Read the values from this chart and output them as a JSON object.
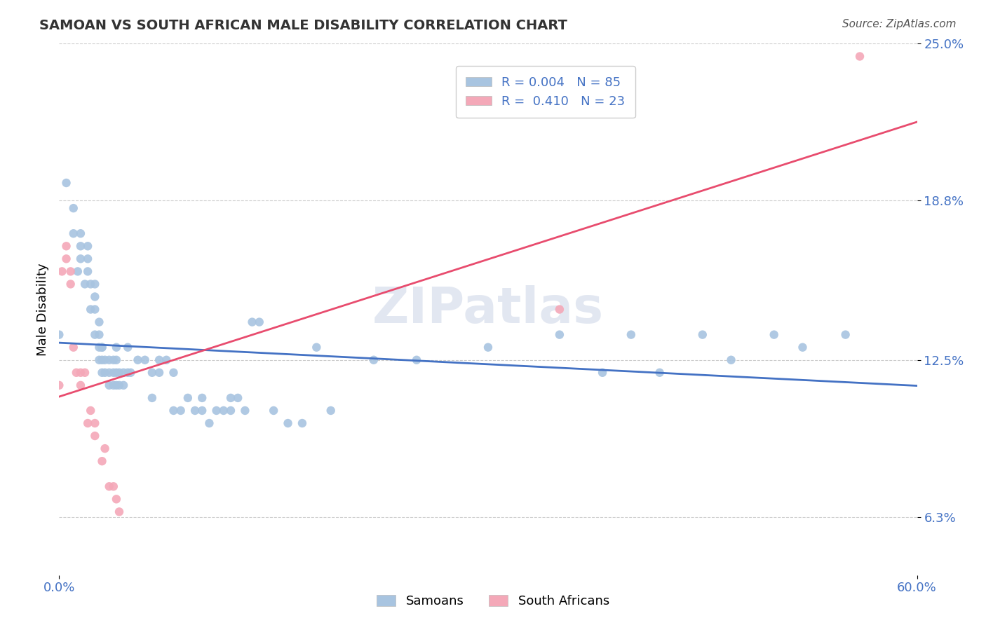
{
  "title": "SAMOAN VS SOUTH AFRICAN MALE DISABILITY CORRELATION CHART",
  "source_text": "Source: ZipAtlas.com",
  "xlabel_bottom": "",
  "ylabel": "Male Disability",
  "x_min": 0.0,
  "x_max": 0.6,
  "y_min": 0.0,
  "y_max": 0.25,
  "y_ticks": [
    0.063,
    0.125,
    0.188,
    0.25
  ],
  "y_tick_labels": [
    "6.3%",
    "12.5%",
    "18.8%",
    "25.0%"
  ],
  "x_tick_labels": [
    "0.0%",
    "60.0%"
  ],
  "legend_bottom": [
    "Samoans",
    "South Africans"
  ],
  "r_samoan": 0.004,
  "n_samoan": 85,
  "r_sa": 0.41,
  "n_sa": 23,
  "samoan_color": "#a8c4e0",
  "sa_color": "#f4a8b8",
  "trend_samoan_color": "#4472c4",
  "trend_sa_color": "#e84c6e",
  "background_color": "#ffffff",
  "grid_color": "#cccccc",
  "legend_text_color": "#4472c4",
  "watermark_color": "#d0d8e8",
  "samoan_x": [
    0.0,
    0.005,
    0.01,
    0.01,
    0.013,
    0.015,
    0.015,
    0.015,
    0.018,
    0.02,
    0.02,
    0.02,
    0.022,
    0.022,
    0.025,
    0.025,
    0.025,
    0.025,
    0.028,
    0.028,
    0.028,
    0.028,
    0.03,
    0.03,
    0.03,
    0.03,
    0.032,
    0.032,
    0.035,
    0.035,
    0.035,
    0.038,
    0.038,
    0.038,
    0.04,
    0.04,
    0.04,
    0.04,
    0.042,
    0.042,
    0.045,
    0.045,
    0.048,
    0.048,
    0.05,
    0.055,
    0.06,
    0.065,
    0.065,
    0.07,
    0.07,
    0.075,
    0.08,
    0.08,
    0.085,
    0.09,
    0.095,
    0.1,
    0.1,
    0.105,
    0.11,
    0.115,
    0.12,
    0.12,
    0.125,
    0.13,
    0.135,
    0.14,
    0.15,
    0.16,
    0.17,
    0.18,
    0.19,
    0.22,
    0.25,
    0.3,
    0.35,
    0.38,
    0.4,
    0.42,
    0.45,
    0.47,
    0.5,
    0.52,
    0.55
  ],
  "samoan_y": [
    0.135,
    0.195,
    0.175,
    0.185,
    0.16,
    0.165,
    0.17,
    0.175,
    0.155,
    0.17,
    0.165,
    0.16,
    0.145,
    0.155,
    0.135,
    0.145,
    0.15,
    0.155,
    0.13,
    0.135,
    0.14,
    0.125,
    0.12,
    0.13,
    0.125,
    0.13,
    0.12,
    0.125,
    0.115,
    0.12,
    0.125,
    0.115,
    0.12,
    0.125,
    0.115,
    0.12,
    0.125,
    0.13,
    0.12,
    0.115,
    0.115,
    0.12,
    0.12,
    0.13,
    0.12,
    0.125,
    0.125,
    0.11,
    0.12,
    0.12,
    0.125,
    0.125,
    0.12,
    0.105,
    0.105,
    0.11,
    0.105,
    0.105,
    0.11,
    0.1,
    0.105,
    0.105,
    0.105,
    0.11,
    0.11,
    0.105,
    0.14,
    0.14,
    0.105,
    0.1,
    0.1,
    0.13,
    0.105,
    0.125,
    0.125,
    0.13,
    0.135,
    0.12,
    0.135,
    0.12,
    0.135,
    0.125,
    0.135,
    0.13,
    0.135
  ],
  "sa_x": [
    0.0,
    0.002,
    0.005,
    0.005,
    0.008,
    0.008,
    0.01,
    0.012,
    0.015,
    0.015,
    0.018,
    0.02,
    0.022,
    0.025,
    0.025,
    0.03,
    0.032,
    0.035,
    0.038,
    0.04,
    0.042,
    0.56,
    0.35
  ],
  "sa_y": [
    0.115,
    0.16,
    0.165,
    0.17,
    0.155,
    0.16,
    0.13,
    0.12,
    0.12,
    0.115,
    0.12,
    0.1,
    0.105,
    0.095,
    0.1,
    0.085,
    0.09,
    0.075,
    0.075,
    0.07,
    0.065,
    0.245,
    0.145
  ]
}
